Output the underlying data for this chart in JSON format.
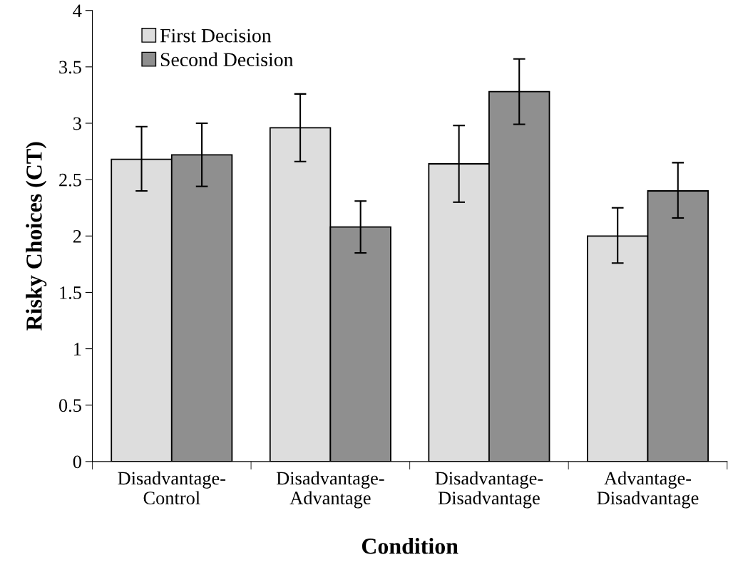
{
  "chart_data": {
    "type": "bar",
    "ylabel": "Risky Choices (CT)",
    "xlabel": "Condition",
    "categories": [
      "Disadvantage-\nControl",
      "Disadvantage-\nAdvantage",
      "Disadvantage-\nDisadvantage",
      "Advantage-\nDisadvantage"
    ],
    "series": [
      {
        "name": "First Decision",
        "color": "#dddddd",
        "values": [
          2.68,
          2.96,
          2.64,
          2.0
        ],
        "errors": [
          [
            2.4,
            2.97
          ],
          [
            2.66,
            3.26
          ],
          [
            2.3,
            2.98
          ],
          [
            1.76,
            2.25
          ]
        ]
      },
      {
        "name": "Second Decision",
        "color": "#8f8f8f",
        "values": [
          2.72,
          2.08,
          3.28,
          2.4
        ],
        "errors": [
          [
            2.44,
            3.0
          ],
          [
            1.85,
            2.31
          ],
          [
            2.99,
            3.57
          ],
          [
            2.16,
            2.65
          ]
        ]
      }
    ],
    "ylim": [
      0,
      4
    ],
    "yticks": [
      0,
      0.5,
      1,
      1.5,
      2,
      2.5,
      3,
      3.5,
      4
    ],
    "grid": false,
    "legend": "top left"
  }
}
